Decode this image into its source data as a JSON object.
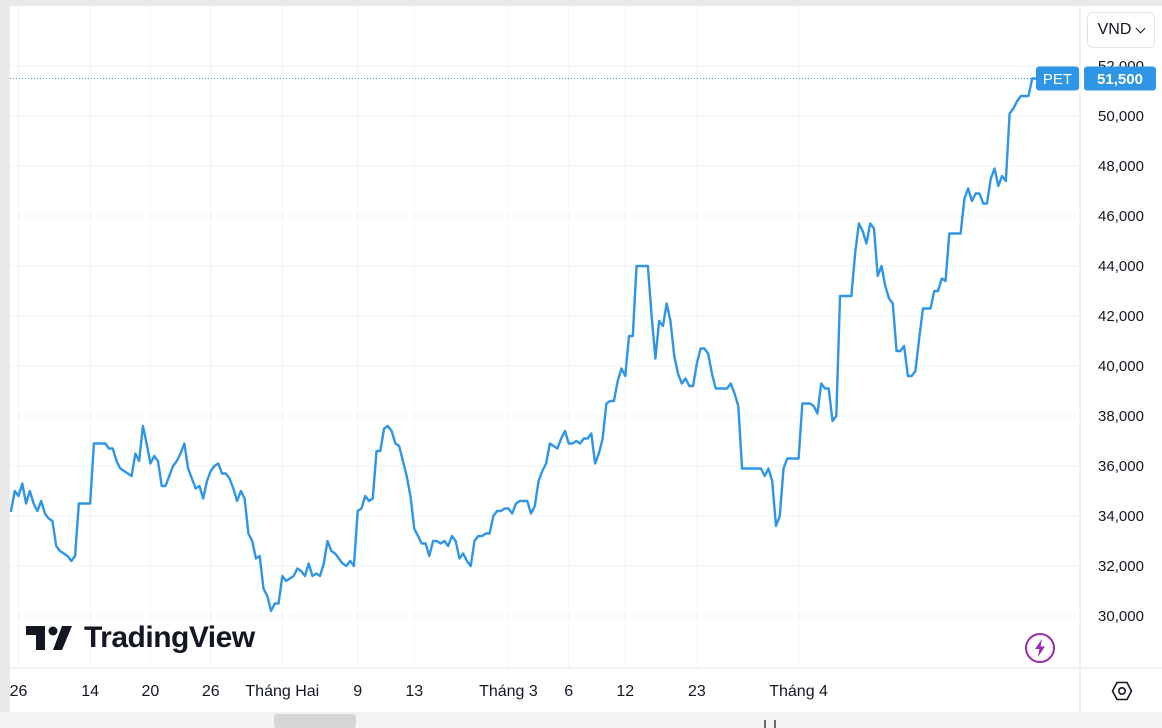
{
  "currency": {
    "selected": "VND"
  },
  "brand": {
    "name": "TradingView"
  },
  "price_label": {
    "symbol": "PET",
    "value": "51,500"
  },
  "icons": {
    "settings": "settings-icon",
    "flash": "lightning-icon",
    "dropdown": "chevron-down-icon"
  },
  "colors": {
    "line": "#2f95e5",
    "label_bg": "#2f95e5",
    "grid": "#f0f3fa",
    "text": "#131722",
    "flash": "#9c27b0"
  },
  "chart_data": {
    "type": "line",
    "title": "",
    "xlabel": "",
    "ylabel": "",
    "ylim": [
      28000,
      53000
    ],
    "y_ticks": [
      30000,
      32000,
      34000,
      36000,
      38000,
      40000,
      42000,
      44000,
      46000,
      48000,
      50000,
      52000
    ],
    "y_tick_labels": [
      "30,000",
      "32,000",
      "34,000",
      "36,000",
      "38,000",
      "40,000",
      "42,000",
      "44,000",
      "46,000",
      "48,000",
      "50,000",
      "52,000"
    ],
    "x_ticks": [
      {
        "label": "26",
        "index": 2
      },
      {
        "label": "14",
        "index": 21
      },
      {
        "label": "20",
        "index": 37
      },
      {
        "label": "26",
        "index": 53
      },
      {
        "label": "Tháng Hai",
        "index": 72
      },
      {
        "label": "9",
        "index": 92
      },
      {
        "label": "13",
        "index": 107
      },
      {
        "label": "Tháng 3",
        "index": 132
      },
      {
        "label": "6",
        "index": 148
      },
      {
        "label": "12",
        "index": 163
      },
      {
        "label": "23",
        "index": 182
      },
      {
        "label": "Tháng 4",
        "index": 209
      }
    ],
    "grid": true,
    "last_value": 51500,
    "series": [
      {
        "values": [
          34200,
          35000,
          34800,
          35300,
          34500,
          35000,
          34500,
          34200,
          34600,
          34100,
          33900,
          33800,
          32800,
          32600,
          32500,
          32400,
          32200,
          32400,
          34500,
          34500,
          34500,
          34500,
          36900,
          36900,
          36900,
          36900,
          36700,
          36700,
          36200,
          35900,
          35800,
          35700,
          35600,
          36500,
          36200,
          37600,
          36900,
          36100,
          36400,
          36200,
          35200,
          35200,
          35600,
          36000,
          36200,
          36500,
          36900,
          35900,
          35500,
          35100,
          35200,
          34700,
          35400,
          35800,
          36000,
          36100,
          35700,
          35700,
          35500,
          35100,
          34600,
          35000,
          34700,
          33300,
          33000,
          32300,
          32400,
          31100,
          30800,
          30200,
          30500,
          30500,
          31600,
          31400,
          31500,
          31600,
          31900,
          31800,
          31600,
          32100,
          31600,
          31700,
          31600,
          32100,
          33000,
          32600,
          32500,
          32300,
          32100,
          32000,
          32200,
          32000,
          34200,
          34300,
          34800,
          34600,
          34700,
          36600,
          36600,
          37500,
          37600,
          37400,
          36900,
          36800,
          36200,
          35600,
          34800,
          33500,
          33200,
          32900,
          32900,
          32400,
          33000,
          33000,
          32900,
          33000,
          32800,
          33200,
          33000,
          32300,
          32500,
          32200,
          32000,
          33000,
          33200,
          33200,
          33300,
          33300,
          34000,
          34200,
          34200,
          34300,
          34300,
          34100,
          34500,
          34600,
          34600,
          34600,
          34100,
          34400,
          35400,
          35800,
          36100,
          36900,
          36800,
          36700,
          37100,
          37400,
          36900,
          36900,
          37000,
          36900,
          37100,
          37100,
          37300,
          36100,
          36500,
          37100,
          38500,
          38600,
          38600,
          39400,
          39900,
          39600,
          41200,
          41200,
          44000,
          44000,
          44000,
          44000,
          42000,
          40300,
          41800,
          41600,
          42500,
          41800,
          40400,
          39700,
          39300,
          39500,
          39200,
          39200,
          40100,
          40700,
          40700,
          40500,
          39700,
          39100,
          39100,
          39100,
          39100,
          39300,
          38900,
          38400,
          35900,
          35900,
          35900,
          35900,
          35900,
          35900,
          35600,
          35900,
          35400,
          33600,
          34000,
          35900,
          36300,
          36300,
          36300,
          36300,
          38500,
          38500,
          38500,
          38400,
          38100,
          39300,
          39100,
          39100,
          37800,
          38000,
          42800,
          42800,
          42800,
          42800,
          44500,
          45700,
          45400,
          44900,
          45700,
          45500,
          43600,
          44000,
          43200,
          42700,
          42500,
          40600,
          40600,
          40800,
          39600,
          39600,
          39800,
          41100,
          42300,
          42300,
          42300,
          43000,
          43000,
          43500,
          43400,
          45300,
          45300,
          45300,
          45300,
          46700,
          47100,
          46600,
          46900,
          46900,
          46500,
          46500,
          47500,
          47900,
          47200,
          47600,
          47400,
          50100,
          50300,
          50600,
          50800,
          50800,
          50800,
          51500,
          51500
        ]
      }
    ]
  }
}
